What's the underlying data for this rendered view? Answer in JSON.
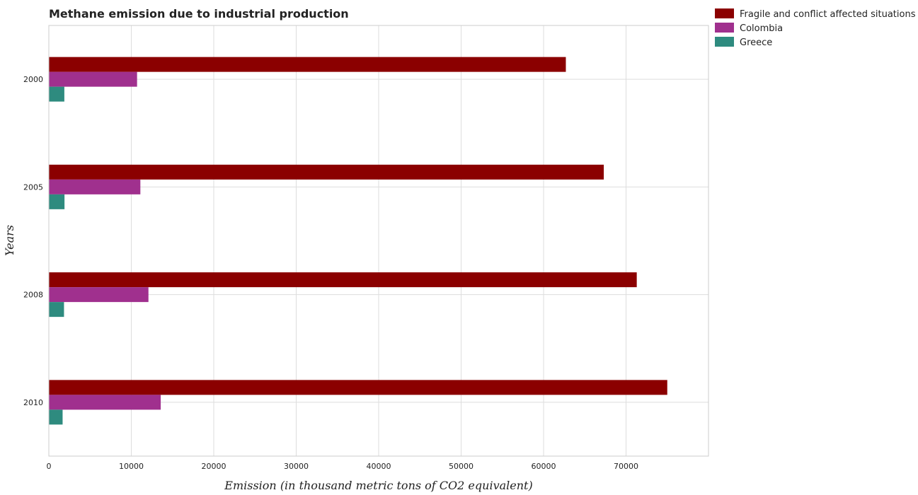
{
  "chart_data": {
    "type": "bar",
    "orientation": "horizontal",
    "title": "Methane emission due to industrial production",
    "xlabel": "Emission (in thousand metric tons of CO2 equivalent)",
    "ylabel": "Years",
    "categories": [
      "2000",
      "2005",
      "2008",
      "2010"
    ],
    "series": [
      {
        "name": "Fragile and conflict affected situations",
        "color": "#8b0000",
        "values": [
          62700,
          67300,
          71300,
          75000
        ]
      },
      {
        "name": "Colombia",
        "color": "#a0308e",
        "values": [
          10700,
          11100,
          12080,
          13570
        ]
      },
      {
        "name": "Greece",
        "color": "#2e8b7f",
        "values": [
          1880,
          1900,
          1840,
          1670
        ]
      }
    ],
    "xlim": [
      0,
      80000
    ],
    "xticks": [
      0,
      10000,
      20000,
      30000,
      40000,
      50000,
      60000,
      70000
    ],
    "grid": true,
    "legend": "top-right"
  }
}
